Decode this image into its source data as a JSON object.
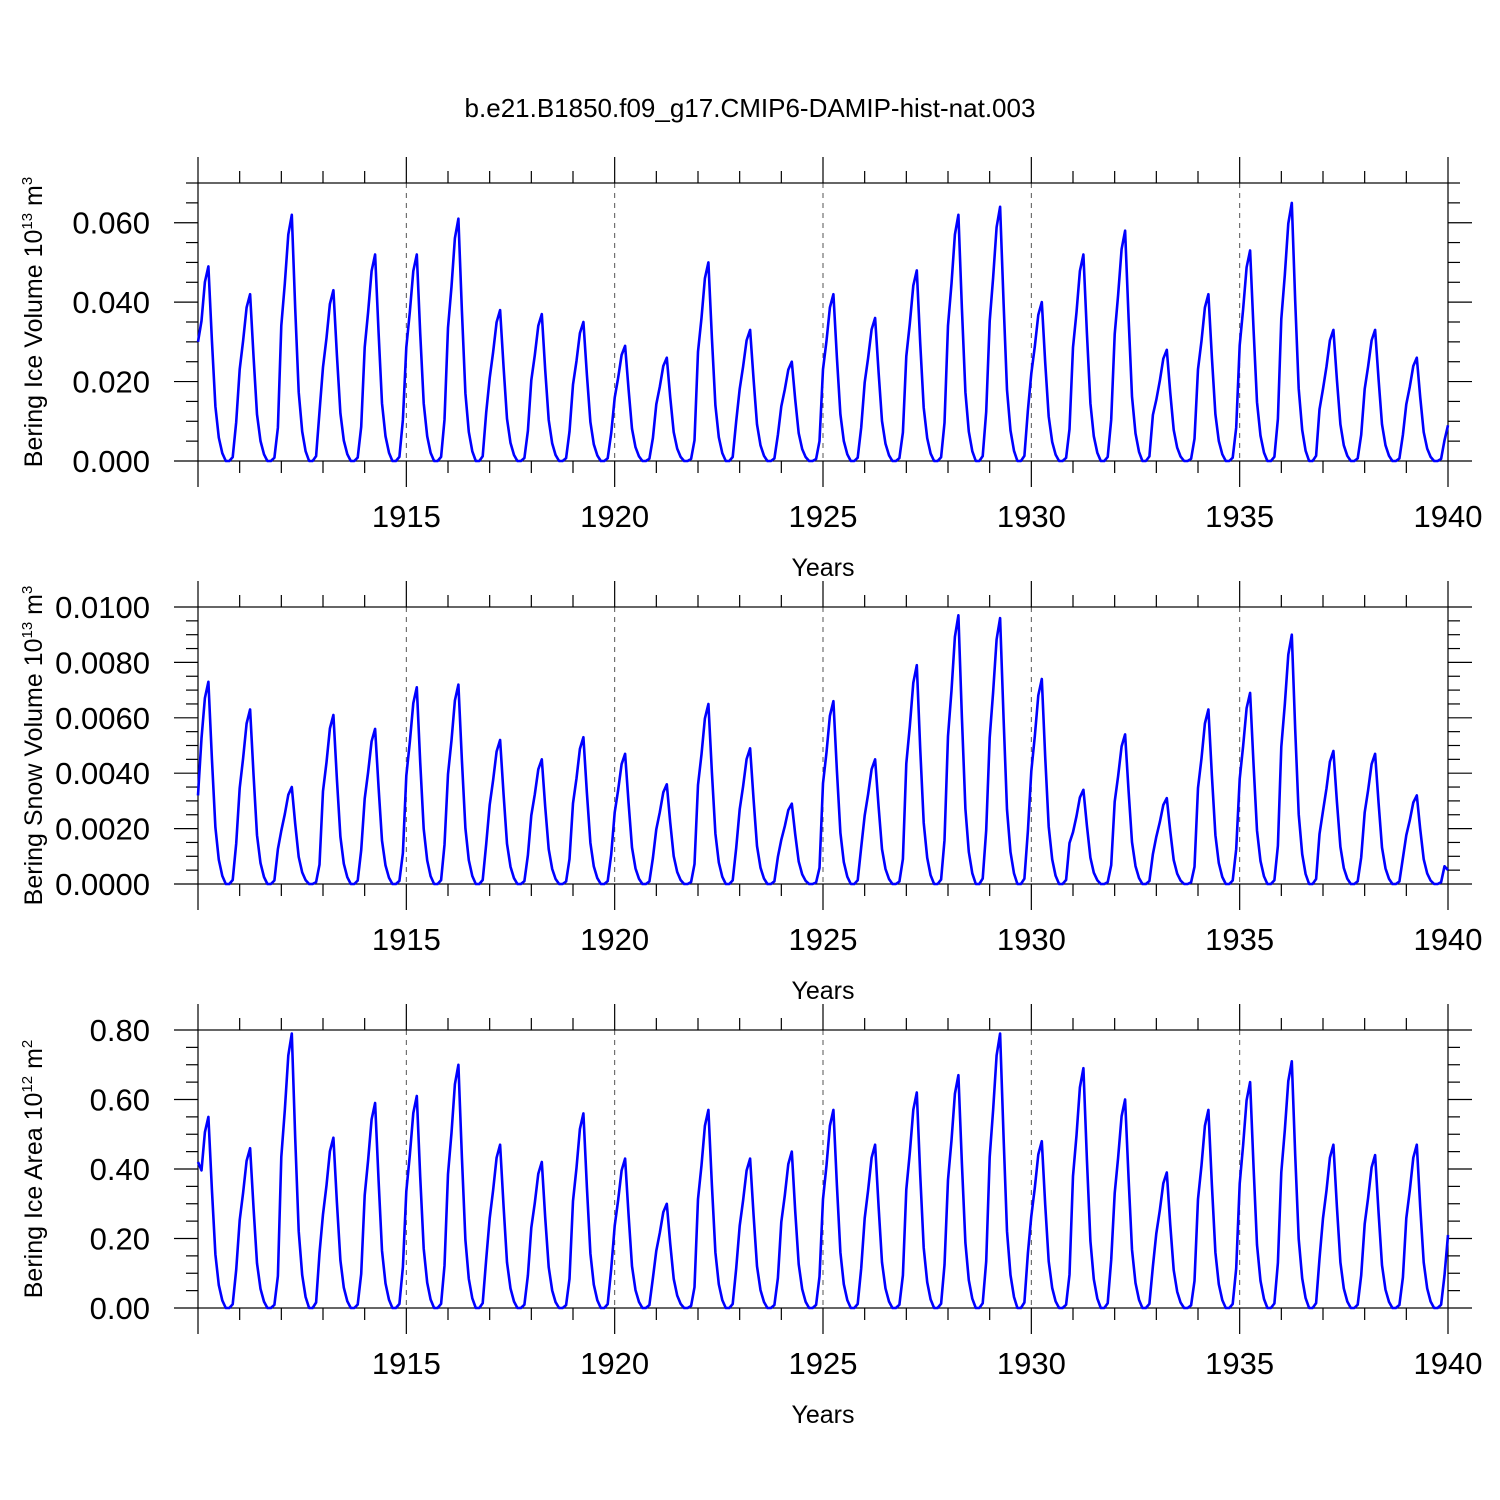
{
  "figure_title": "b.e21.B1850.f09_g17.CMIP6-DAMIP-hist-nat.003",
  "colors": {
    "line": "#0000ff",
    "axis": "#000000",
    "grid": "#555555"
  },
  "chart_data": [
    {
      "type": "line",
      "ylabel": "Bering Ice Volume 10",
      "ylabel_exp": "13",
      "ylabel_unit": " m",
      "ylabel_unit_exp": "3",
      "xlabel": "Years",
      "xlim": [
        1910,
        1940
      ],
      "ylim": [
        0,
        0.07
      ],
      "yticks": [
        0,
        0.02,
        0.04,
        0.06
      ],
      "ytick_labels": [
        "0.000",
        "0.020",
        "0.040",
        "0.060"
      ],
      "xticks": [
        1915,
        1920,
        1925,
        1930,
        1935,
        1940
      ],
      "xtick_labels": [
        "1915",
        "1920",
        "1925",
        "1930",
        "1935",
        "1940"
      ],
      "grid_x": [
        1915,
        1920,
        1925,
        1930,
        1935
      ],
      "peaks": [
        0.049,
        0.042,
        0.062,
        0.043,
        0.052,
        0.052,
        0.061,
        0.038,
        0.037,
        0.035,
        0.029,
        0.026,
        0.05,
        0.033,
        0.025,
        0.042,
        0.036,
        0.048,
        0.062,
        0.064,
        0.04,
        0.052,
        0.058,
        0.028,
        0.042,
        0.053,
        0.065,
        0.033,
        0.033,
        0.026
      ],
      "start": 0.03,
      "end": 0.009
    },
    {
      "type": "line",
      "ylabel": "Bering Snow Volume 10",
      "ylabel_exp": "13",
      "ylabel_unit": " m",
      "ylabel_unit_exp": "3",
      "xlabel": "Years",
      "xlim": [
        1910,
        1940
      ],
      "ylim": [
        0,
        0.01
      ],
      "yticks": [
        0,
        0.002,
        0.004,
        0.006,
        0.008,
        0.01
      ],
      "ytick_labels": [
        "0.0000",
        "0.0020",
        "0.0040",
        "0.0060",
        "0.0080",
        "0.0100"
      ],
      "xticks": [
        1915,
        1920,
        1925,
        1930,
        1935,
        1940
      ],
      "xtick_labels": [
        "1915",
        "1920",
        "1925",
        "1930",
        "1935",
        "1940"
      ],
      "grid_x": [
        1915,
        1920,
        1925,
        1930,
        1935
      ],
      "peaks": [
        0.0073,
        0.0063,
        0.0035,
        0.0061,
        0.0056,
        0.0071,
        0.0072,
        0.0052,
        0.0045,
        0.0053,
        0.0047,
        0.0036,
        0.0065,
        0.0049,
        0.0029,
        0.0066,
        0.0045,
        0.0079,
        0.0097,
        0.0096,
        0.0074,
        0.0034,
        0.0054,
        0.0031,
        0.0063,
        0.0069,
        0.009,
        0.0048,
        0.0047,
        0.0032
      ],
      "start": 0.0032,
      "end": 0.0005
    },
    {
      "type": "line",
      "ylabel": "Bering Ice Area 10",
      "ylabel_exp": "12",
      "ylabel_unit": " m",
      "ylabel_unit_exp": "2",
      "xlabel": "Years",
      "xlim": [
        1910,
        1940
      ],
      "ylim": [
        0,
        0.8
      ],
      "yticks": [
        0,
        0.2,
        0.4,
        0.6,
        0.8
      ],
      "ytick_labels": [
        "0.00",
        "0.20",
        "0.40",
        "0.60",
        "0.80"
      ],
      "xticks": [
        1915,
        1920,
        1925,
        1930,
        1935,
        1940
      ],
      "xtick_labels": [
        "1915",
        "1920",
        "1925",
        "1930",
        "1935",
        "1940"
      ],
      "grid_x": [
        1915,
        1920,
        1925,
        1930,
        1935
      ],
      "peaks": [
        0.55,
        0.46,
        0.79,
        0.49,
        0.59,
        0.61,
        0.7,
        0.47,
        0.42,
        0.56,
        0.43,
        0.3,
        0.57,
        0.43,
        0.45,
        0.57,
        0.47,
        0.62,
        0.67,
        0.79,
        0.48,
        0.69,
        0.6,
        0.39,
        0.57,
        0.65,
        0.71,
        0.47,
        0.44,
        0.47
      ],
      "start": 0.42,
      "end": 0.21
    }
  ]
}
